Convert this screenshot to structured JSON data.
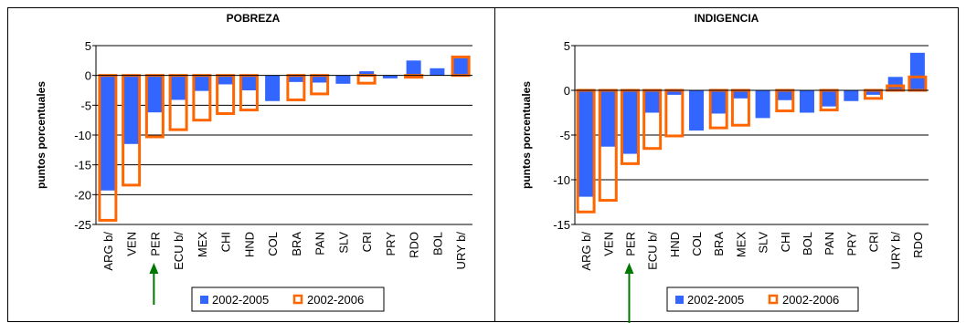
{
  "colors": {
    "series_fill": "#3366ff",
    "series_outline": "#ff6600",
    "arrow": "#007700",
    "grid": "#000000"
  },
  "chart_data": [
    {
      "type": "bar",
      "title": "POBREZA",
      "ylabel": "puntos porcentuales",
      "ylim": [
        -25,
        5
      ],
      "yticks": [
        5,
        0,
        -5,
        -10,
        -15,
        -20,
        -25
      ],
      "grid": true,
      "legend": "bottom",
      "highlight_category": "PER",
      "categories": [
        "ARG b/",
        "VEN",
        "PER",
        "ECU b/",
        "MEX",
        "CHI",
        "HND",
        "COL",
        "BRA",
        "PAN",
        "SLV",
        "CRI",
        "PRY",
        "RDO",
        "BOL",
        "URY b/"
      ],
      "series": [
        {
          "name": "2002-2005",
          "style": "filled",
          "values": [
            -19.3,
            -11.5,
            -6.2,
            -4.1,
            -2.6,
            -1.5,
            -2.5,
            -4.3,
            -1.1,
            -1.2,
            -1.4,
            0.7,
            -0.5,
            2.5,
            1.2,
            2.9
          ]
        },
        {
          "name": "2002-2006",
          "style": "outline",
          "values": [
            -24.3,
            -18.4,
            -10.3,
            -9.1,
            -7.5,
            -6.4,
            -5.8,
            null,
            -4.1,
            -3.1,
            null,
            -1.3,
            null,
            -0.3,
            null,
            3.1
          ]
        }
      ]
    },
    {
      "type": "bar",
      "title": "INDIGENCIA",
      "ylabel": "puntos porcentuales",
      "ylim": [
        -15,
        5
      ],
      "yticks": [
        5,
        0,
        -5,
        -10,
        -15
      ],
      "grid": true,
      "legend": "bottom",
      "highlight_category": "PER",
      "categories": [
        "ARG b/",
        "VEN",
        "PER",
        "ECU b/",
        "HND",
        "COL",
        "BRA",
        "MEX",
        "SLV",
        "CHI",
        "BOL",
        "PAN",
        "PRY",
        "CRI",
        "URY b/",
        "RDO"
      ],
      "series": [
        {
          "name": "2002-2005",
          "style": "filled",
          "values": [
            -11.9,
            -6.3,
            -7.1,
            -2.5,
            -0.5,
            -4.5,
            -2.6,
            -0.9,
            -3.1,
            -1.1,
            -2.5,
            -1.8,
            -1.2,
            -0.5,
            1.5,
            4.2
          ]
        },
        {
          "name": "2002-2006",
          "style": "outline",
          "values": [
            -13.6,
            -12.3,
            -8.2,
            -6.5,
            -5.1,
            null,
            -4.2,
            -3.9,
            null,
            -2.3,
            null,
            -2.2,
            null,
            -0.9,
            0.5,
            1.5
          ]
        }
      ]
    }
  ]
}
